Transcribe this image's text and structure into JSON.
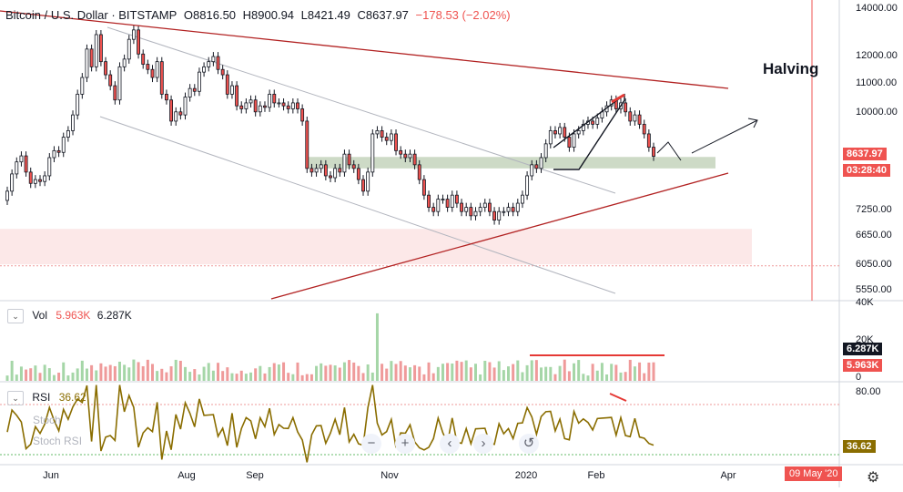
{
  "header": {
    "symbol": "Bitcoin / U.S. Dollar · BITSTAMP",
    "open": "O8816.50",
    "high": "H8900.94",
    "low": "L8421.49",
    "close": "C8637.97",
    "change": "−178.53 (−2.02%)"
  },
  "annotation_text": "Halving",
  "price_axis": [
    "14000.00",
    "12000.00",
    "11000.00",
    "10000.00",
    "8637.97",
    "03:28:40",
    "7250.00",
    "6650.00",
    "6050.00",
    "5550.00"
  ],
  "volume_pane": {
    "label": "Vol",
    "value1": "5.963K",
    "value2": "6.287K",
    "axis": [
      "40K",
      "20K",
      "0"
    ],
    "badge_up": "6.287K",
    "badge_down": "5.963K"
  },
  "rsi_pane": {
    "label": "RSI",
    "value": "36.62",
    "axis_top": "80.00",
    "badge": "36.62",
    "overlay1": "Stoch",
    "overlay2": "Stoch RSI"
  },
  "price_badges": {
    "last": "8637.97",
    "countdown": "03:28:40"
  },
  "date_badge": "09 May '20",
  "colors": {
    "up": "#26a69a",
    "down": "#ef5350",
    "candle": "#131722",
    "trend": "#b22222",
    "rsi": "#8a6d00",
    "zone": "#c8d6c0",
    "support": "#fce8e8",
    "accent": "#2962ff"
  },
  "chart_data": {
    "type": "candlestick",
    "title": "Bitcoin / U.S. Dollar · BITSTAMP",
    "x_ticks": [
      "Jun",
      "Aug",
      "Sep",
      "Nov",
      "2020",
      "Feb",
      "Apr"
    ],
    "y_ticks": [
      14000,
      12000,
      11000,
      10000,
      7250,
      6650,
      6050,
      5550
    ],
    "y_scale": "log",
    "ylim": [
      5400,
      14200
    ],
    "closes": [
      7700,
      8150,
      8480,
      8650,
      8200,
      7900,
      8000,
      7950,
      8100,
      8600,
      8800,
      8750,
      9200,
      9400,
      9900,
      10600,
      11200,
      12300,
      11600,
      12900,
      11800,
      11300,
      10900,
      10400,
      11600,
      11900,
      12700,
      13100,
      12100,
      11700,
      11500,
      11200,
      11800,
      10600,
      10400,
      9700,
      10000,
      9900,
      10500,
      10800,
      10700,
      11400,
      11600,
      11800,
      12000,
      11500,
      11300,
      10600,
      10900,
      10200,
      10100,
      10300,
      10400,
      10000,
      10200,
      10150,
      10600,
      10300,
      10300,
      10200,
      10100,
      10300,
      10100,
      9700,
      8300,
      8200,
      8300,
      8400,
      8100,
      8050,
      8300,
      8200,
      8700,
      8400,
      8300,
      8000,
      7700,
      8200,
      9300,
      9400,
      9200,
      9100,
      9300,
      8800,
      8700,
      8600,
      8700,
      8400,
      8000,
      7600,
      7300,
      7200,
      7500,
      7500,
      7300,
      7600,
      7400,
      7200,
      7300,
      7100,
      7200,
      7300,
      7400,
      7200,
      7000,
      7200,
      7200,
      7300,
      7200,
      7400,
      7600,
      8100,
      8400,
      8300,
      8600,
      9000,
      9400,
      9300,
      9500,
      9200,
      8900,
      9300,
      9400,
      9600,
      9700,
      9600,
      9800,
      10000,
      10200,
      10400,
      10100,
      10300,
      10000,
      9700,
      9900,
      9600,
      9300,
      8900,
      8638
    ],
    "resistance_line": {
      "from": {
        "date": "2019-05-20",
        "price": 14000
      },
      "to": {
        "date": "2020-04-20",
        "price": 10800
      }
    },
    "support_line": {
      "from": {
        "date": "2019-09-05",
        "price": 5400
      },
      "to": {
        "date": "2020-04-20",
        "price": 8100
      }
    },
    "zones": [
      {
        "name": "supply-demand",
        "low": 8300,
        "high": 8620
      },
      {
        "name": "support",
        "low": 6050,
        "high": 6800
      }
    ],
    "volume": {
      "ylim": [
        0,
        40000
      ],
      "last": 5963,
      "ma": 6287
    },
    "rsi": {
      "ylim": [
        20,
        90
      ],
      "upper": 70,
      "lower": 30,
      "last": 36.62
    }
  }
}
